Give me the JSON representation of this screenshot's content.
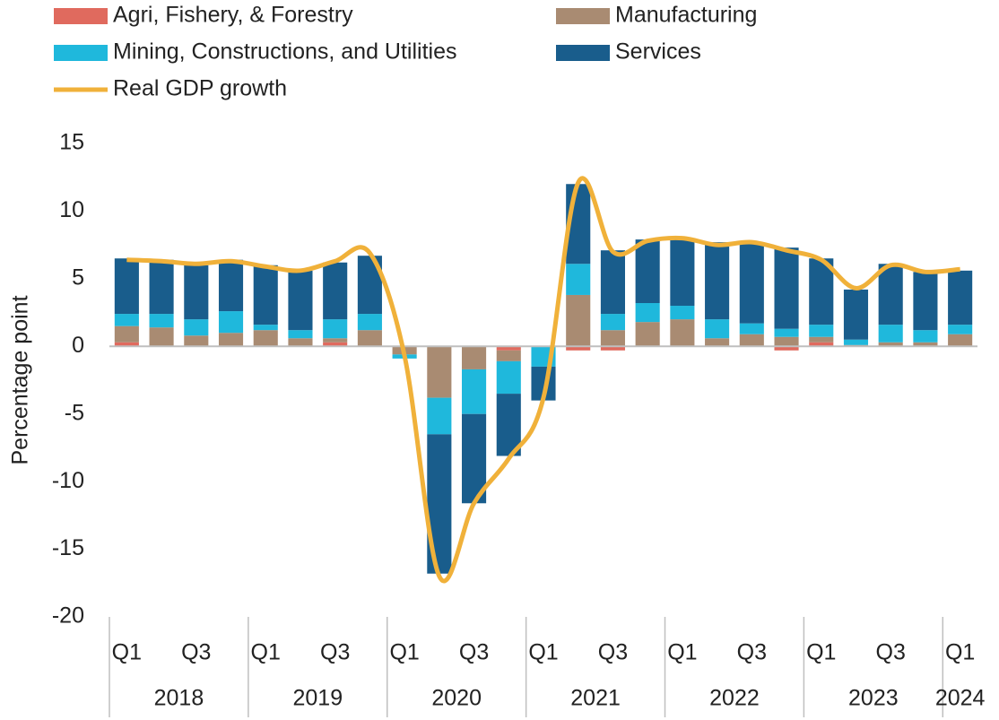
{
  "chart_data": {
    "type": "stacked_bar_line",
    "y_label": "Percentage point",
    "categories": [
      "Q1",
      null,
      "Q3",
      null,
      "Q1",
      null,
      "Q3",
      null,
      "Q1",
      null,
      "Q3",
      null,
      "Q1",
      null,
      "Q3",
      null,
      "Q1",
      null,
      "Q3",
      null,
      "Q1",
      null,
      "Q3",
      null,
      "Q1"
    ],
    "year_labels": [
      "2018",
      "2019",
      "2020",
      "2021",
      "2022",
      "2023",
      "2024"
    ],
    "ylim": [
      -20,
      15
    ],
    "yticks": [
      -20,
      -15,
      -10,
      -5,
      0,
      5,
      10,
      15
    ],
    "series": [
      {
        "name": "Agri, Fishery, & Forestry",
        "color": "#e06a5e",
        "values": [
          0.3,
          0,
          0,
          0,
          0,
          0,
          0.3,
          0,
          0,
          0,
          0,
          -0.3,
          0,
          -0.3,
          -0.3,
          0,
          0,
          0,
          0,
          -0.3,
          0.3,
          0,
          0,
          0,
          0
        ]
      },
      {
        "name": "Manufacturing",
        "color": "#a98b72",
        "values": [
          1.2,
          1.4,
          0.8,
          1.0,
          1.2,
          0.6,
          0.3,
          1.2,
          -0.6,
          -3.8,
          -1.7,
          -0.8,
          0,
          3.8,
          1.2,
          1.8,
          2.0,
          0.6,
          0.9,
          0.7,
          0.4,
          0.1,
          0.3,
          0.3,
          0.9
        ]
      },
      {
        "name": "Mining, Constructions, and Utilities",
        "color": "#1fb8dc",
        "values": [
          0.9,
          1.0,
          1.2,
          1.6,
          0.4,
          0.6,
          1.4,
          1.2,
          -0.3,
          -2.7,
          -3.3,
          -2.4,
          -1.5,
          2.3,
          1.2,
          1.4,
          1.0,
          1.4,
          0.8,
          0.6,
          0.9,
          0.4,
          1.3,
          0.9,
          0.7
        ]
      },
      {
        "name": "Services",
        "color": "#195d8c",
        "values": [
          4.1,
          4.0,
          4.0,
          3.8,
          4.4,
          4.4,
          4.2,
          4.3,
          0,
          -10.3,
          -6.6,
          -4.6,
          -2.5,
          5.9,
          4.7,
          4.7,
          5.0,
          5.7,
          6.0,
          6.0,
          4.9,
          3.7,
          4.5,
          4.3,
          4.0
        ]
      }
    ],
    "line": {
      "name": "Real GDP growth",
      "color": "#f0b13a",
      "values": [
        6.4,
        6.3,
        6.1,
        6.3,
        5.9,
        5.6,
        6.3,
        6.9,
        -0.7,
        -17.0,
        -11.6,
        -8.3,
        -3.8,
        12.1,
        7.0,
        7.8,
        8.0,
        7.5,
        7.7,
        7.1,
        6.4,
        4.3,
        6.0,
        5.5,
        5.7
      ]
    }
  }
}
